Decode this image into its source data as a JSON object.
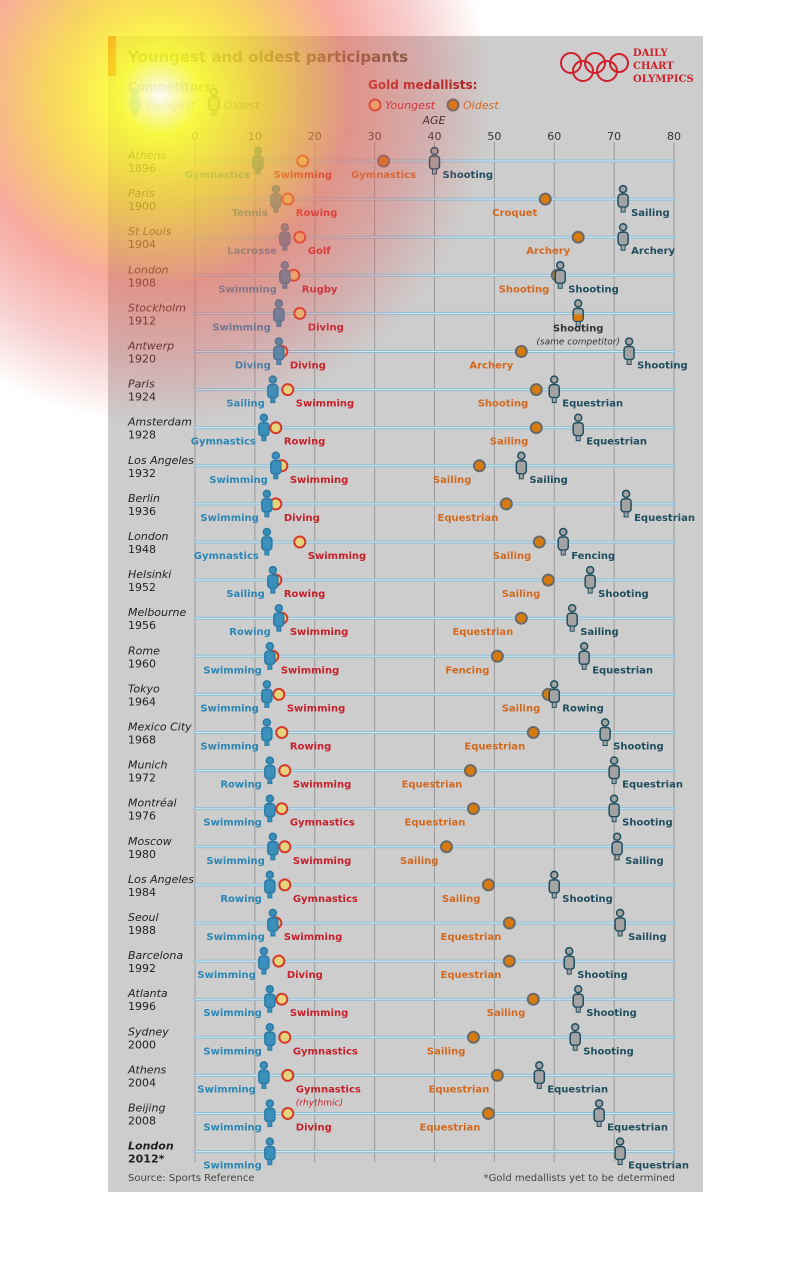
{
  "header": {
    "title": "Youngest and oldest participants",
    "competitors_label": "Competitors:",
    "gold_label": "Gold medallists:",
    "legend": {
      "youngest": "Youngest",
      "oldest": "Oldest"
    },
    "logo_lines": [
      "DAILY",
      "CHART",
      "OLYMPICS"
    ]
  },
  "footer": {
    "source": "Source: Sports Reference",
    "footnote": "*Gold medallists yet to be determined"
  },
  "colors": {
    "background": "#cdcdcd",
    "row_line": "#8dbdd3",
    "young_competitor": "#3a90bb",
    "old_competitor_fill": "#a3a3a3",
    "old_competitor_outline": "#1f4e5f",
    "young_gold_fill": "#e6d37e",
    "young_gold_outline": "#d43a2a",
    "old_gold_fill": "#d87a0c",
    "old_gold_outline": "#6a6a6a",
    "young_competitor_text": "#2a86b5",
    "young_gold_text": "#c8202a",
    "old_gold_text": "#d2691e",
    "old_competitor_text": "#1f4e5f"
  },
  "chart_data": {
    "type": "scatter",
    "xlabel": "AGE",
    "xlim": [
      0,
      80
    ],
    "xticks": [
      0,
      10,
      20,
      30,
      40,
      50,
      60,
      70,
      80
    ],
    "grid": true,
    "series_keys": [
      "youngest_competitor",
      "youngest_gold",
      "oldest_gold",
      "oldest_competitor"
    ],
    "rows": [
      {
        "city": "Athens",
        "year": "1896",
        "yc": [
          10.5,
          "Gymnastics"
        ],
        "yg": [
          18,
          "Swimming"
        ],
        "og": [
          31.5,
          "Gymnastics"
        ],
        "oc": [
          40,
          "Shooting"
        ]
      },
      {
        "city": "Paris",
        "year": "1900",
        "yc": [
          13.5,
          "Tennis"
        ],
        "yg": [
          15.5,
          "Rowing"
        ],
        "og": [
          58.5,
          "Croquet"
        ],
        "oc": [
          71.5,
          "Sailing"
        ]
      },
      {
        "city": "St Louis",
        "year": "1904",
        "yc": [
          15,
          "Lacrosse"
        ],
        "yg": [
          17.5,
          "Golf"
        ],
        "og": [
          64,
          "Archery"
        ],
        "oc": [
          71.5,
          "Archery"
        ]
      },
      {
        "city": "London",
        "year": "1908",
        "yc": [
          15,
          "Swimming"
        ],
        "yg": [
          16.5,
          "Rugby"
        ],
        "og": [
          60.5,
          "Shooting"
        ],
        "oc": [
          61,
          "Shooting"
        ]
      },
      {
        "city": "Stockholm",
        "year": "1912",
        "yc": [
          14,
          "Swimming"
        ],
        "yg": [
          17.5,
          "Diving"
        ],
        "og": [
          64,
          "Shooting"
        ],
        "oc": [
          64,
          "Shooting"
        ],
        "note": "(same competitor)"
      },
      {
        "city": "Antwerp",
        "year": "1920",
        "yc": [
          14,
          "Diving"
        ],
        "yg": [
          14.5,
          "Diving"
        ],
        "og": [
          54.5,
          "Archery"
        ],
        "oc": [
          72.5,
          "Shooting"
        ]
      },
      {
        "city": "Paris",
        "year": "1924",
        "yc": [
          13,
          "Sailing"
        ],
        "yg": [
          15.5,
          "Swimming"
        ],
        "og": [
          57,
          "Shooting"
        ],
        "oc": [
          60,
          "Equestrian"
        ]
      },
      {
        "city": "Amsterdam",
        "year": "1928",
        "yc": [
          11.5,
          "Gymnastics"
        ],
        "yg": [
          13.5,
          "Rowing"
        ],
        "og": [
          57,
          "Sailing"
        ],
        "oc": [
          64,
          "Equestrian"
        ]
      },
      {
        "city": "Los Angeles",
        "year": "1932",
        "yc": [
          13.5,
          "Swimming"
        ],
        "yg": [
          14.5,
          "Swimming"
        ],
        "og": [
          47.5,
          "Sailing"
        ],
        "oc": [
          54.5,
          "Sailing"
        ]
      },
      {
        "city": "Berlin",
        "year": "1936",
        "yc": [
          12,
          "Swimming"
        ],
        "yg": [
          13.5,
          "Diving"
        ],
        "og": [
          52,
          "Equestrian"
        ],
        "oc": [
          72,
          "Equestrian"
        ]
      },
      {
        "city": "London",
        "year": "1948",
        "yc": [
          12,
          "Gymnastics"
        ],
        "yg": [
          17.5,
          "Swimming"
        ],
        "og": [
          57.5,
          "Sailing"
        ],
        "oc": [
          61.5,
          "Fencing"
        ]
      },
      {
        "city": "Helsinki",
        "year": "1952",
        "yc": [
          13,
          "Sailing"
        ],
        "yg": [
          13.5,
          "Rowing"
        ],
        "og": [
          59,
          "Sailing"
        ],
        "oc": [
          66,
          "Shooting"
        ]
      },
      {
        "city": "Melbourne",
        "year": "1956",
        "yc": [
          14,
          "Rowing"
        ],
        "yg": [
          14.5,
          "Swimming"
        ],
        "og": [
          54.5,
          "Equestrian"
        ],
        "oc": [
          63,
          "Sailing"
        ]
      },
      {
        "city": "Rome",
        "year": "1960",
        "yc": [
          12.5,
          "Swimming"
        ],
        "yg": [
          13,
          "Swimming"
        ],
        "og": [
          50.5,
          "Fencing"
        ],
        "oc": [
          65,
          "Equestrian"
        ]
      },
      {
        "city": "Tokyo",
        "year": "1964",
        "yc": [
          12,
          "Swimming"
        ],
        "yg": [
          14,
          "Swimming"
        ],
        "og": [
          59,
          "Sailing"
        ],
        "oc": [
          60,
          "Rowing"
        ]
      },
      {
        "city": "Mexico City",
        "year": "1968",
        "yc": [
          12,
          "Swimming"
        ],
        "yg": [
          14.5,
          "Rowing"
        ],
        "og": [
          56.5,
          "Equestrian"
        ],
        "oc": [
          68.5,
          "Shooting"
        ]
      },
      {
        "city": "Munich",
        "year": "1972",
        "yc": [
          12.5,
          "Rowing"
        ],
        "yg": [
          15,
          "Swimming"
        ],
        "og": [
          46,
          "Equestrian"
        ],
        "oc": [
          70,
          "Equestrian"
        ]
      },
      {
        "city": "Montréal",
        "year": "1976",
        "yc": [
          12.5,
          "Swimming"
        ],
        "yg": [
          14.5,
          "Gymnastics"
        ],
        "og": [
          46.5,
          "Equestrian"
        ],
        "oc": [
          70,
          "Shooting"
        ]
      },
      {
        "city": "Moscow",
        "year": "1980",
        "yc": [
          13,
          "Swimming"
        ],
        "yg": [
          15,
          "Swimming"
        ],
        "og": [
          42,
          "Sailing"
        ],
        "oc": [
          70.5,
          "Sailing"
        ]
      },
      {
        "city": "Los Angeles",
        "year": "1984",
        "yc": [
          12.5,
          "Rowing"
        ],
        "yg": [
          15,
          "Gymnastics"
        ],
        "og": [
          49,
          "Sailing"
        ],
        "oc": [
          60,
          "Shooting"
        ]
      },
      {
        "city": "Seoul",
        "year": "1988",
        "yc": [
          13,
          "Swimming"
        ],
        "yg": [
          13.5,
          "Swimming"
        ],
        "og": [
          52.5,
          "Equestrian"
        ],
        "oc": [
          71,
          "Sailing"
        ]
      },
      {
        "city": "Barcelona",
        "year": "1992",
        "yc": [
          11.5,
          "Swimming"
        ],
        "yg": [
          14,
          "Diving"
        ],
        "og": [
          52.5,
          "Equestrian"
        ],
        "oc": [
          62.5,
          "Shooting"
        ]
      },
      {
        "city": "Atlanta",
        "year": "1996",
        "yc": [
          12.5,
          "Swimming"
        ],
        "yg": [
          14.5,
          "Swimming"
        ],
        "og": [
          56.5,
          "Sailing"
        ],
        "oc": [
          64,
          "Shooting"
        ]
      },
      {
        "city": "Sydney",
        "year": "2000",
        "yc": [
          12.5,
          "Swimming"
        ],
        "yg": [
          15,
          "Gymnastics"
        ],
        "og": [
          46.5,
          "Sailing"
        ],
        "oc": [
          63.5,
          "Shooting"
        ]
      },
      {
        "city": "Athens",
        "year": "2004",
        "yc": [
          11.5,
          "Swimming"
        ],
        "yg": [
          15.5,
          "Gymnastics"
        ],
        "og": [
          50.5,
          "Equestrian"
        ],
        "oc": [
          57.5,
          "Equestrian"
        ],
        "yg_note": "(rhythmic)"
      },
      {
        "city": "Beijing",
        "year": "2008",
        "yc": [
          12.5,
          "Swimming"
        ],
        "yg": [
          15.5,
          "Diving"
        ],
        "og": [
          49,
          "Equestrian"
        ],
        "oc": [
          67.5,
          "Equestrian"
        ]
      },
      {
        "city": "London",
        "year": "2012*",
        "yc": [
          12.5,
          "Swimming"
        ],
        "oc": [
          71,
          "Equestrian"
        ],
        "bold": true
      }
    ]
  }
}
